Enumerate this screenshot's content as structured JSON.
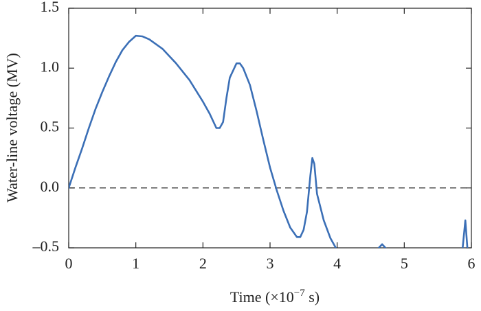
{
  "chart_data": {
    "type": "line",
    "x_label": "Time (×10",
    "x_label_exponent": "−7",
    "x_label_suffix": " s)",
    "y_label": "Water-line voltage (MV)",
    "xlim": [
      0,
      6
    ],
    "ylim": [
      -0.5,
      1.5
    ],
    "xticks": [
      0,
      1,
      2,
      3,
      4,
      5,
      6
    ],
    "yticks": [
      {
        "value": -0.5,
        "label": "–0.5"
      },
      {
        "value": 0,
        "label": "0.0"
      },
      0.5,
      {
        "value": 1,
        "label": "1.0"
      },
      1.5
    ],
    "reference_line": {
      "y": 0,
      "style": "dashed",
      "color": "#222222"
    },
    "series": [
      {
        "color": "#3b6fb6",
        "x": [
          0,
          0.1,
          0.2,
          0.3,
          0.4,
          0.5,
          0.6,
          0.7,
          0.8,
          0.9,
          1.0,
          1.1,
          1.2,
          1.4,
          1.6,
          1.8,
          2.0,
          2.1,
          2.2,
          2.25,
          2.3,
          2.35,
          2.4,
          2.5,
          2.55,
          2.6,
          2.7,
          2.8,
          2.9,
          3.0,
          3.1,
          3.2,
          3.3,
          3.4,
          3.45,
          3.5,
          3.55,
          3.6,
          3.63,
          3.66,
          3.7,
          3.8,
          3.9,
          3.98,
          4.2,
          4.62,
          4.67,
          4.72,
          5.5,
          5.87,
          5.91,
          5.94
        ],
        "values": [
          0,
          0.17,
          0.33,
          0.5,
          0.66,
          0.8,
          0.93,
          1.05,
          1.15,
          1.22,
          1.27,
          1.265,
          1.24,
          1.16,
          1.04,
          0.9,
          0.72,
          0.62,
          0.5,
          0.5,
          0.55,
          0.75,
          0.92,
          1.04,
          1.04,
          1.0,
          0.86,
          0.64,
          0.4,
          0.17,
          -0.02,
          -0.19,
          -0.33,
          -0.41,
          -0.41,
          -0.35,
          -0.2,
          0.1,
          0.25,
          0.2,
          -0.05,
          -0.27,
          -0.42,
          -0.5,
          null,
          -0.5,
          -0.47,
          -0.5,
          null,
          -0.5,
          -0.27,
          -0.5
        ]
      }
    ]
  }
}
